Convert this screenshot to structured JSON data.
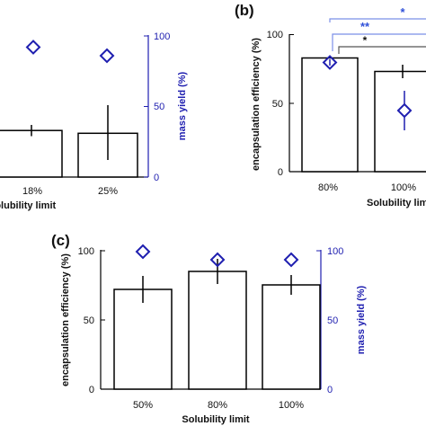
{
  "colors": {
    "bar_fill": "#ffffff",
    "bar_stroke": "#000000",
    "mass_yield": "#1f1fb0",
    "sig_light": "#7b8fe8"
  },
  "chart_data": [
    {
      "panel": "",
      "type": "bar",
      "categories": [
        "18%",
        "25%"
      ],
      "series": [
        {
          "name": "encapsulation efficiency",
          "axis": "left",
          "values": [
            33,
            31
          ],
          "errors": [
            4,
            20
          ]
        },
        {
          "name": "mass yield",
          "axis": "right",
          "marker": "diamond",
          "values": [
            92,
            86
          ],
          "errors": [
            0,
            0
          ]
        }
      ],
      "xlabel": "Solubility limit",
      "ylabel_left": "",
      "ylabel_right": "mass yield (%)",
      "ylim_left": [
        0,
        100
      ],
      "ylim_right": [
        0,
        100
      ],
      "yticks_right": [
        0,
        50,
        100
      ],
      "annotations": []
    },
    {
      "panel": "(b)",
      "type": "bar",
      "categories": [
        "80%",
        "100%"
      ],
      "series": [
        {
          "name": "encapsulation efficiency",
          "axis": "left",
          "values": [
            83,
            73
          ],
          "errors": [
            0,
            5
          ]
        },
        {
          "name": "mass yield",
          "axis": "right",
          "marker": "diamond",
          "values": [
            79,
            45
          ],
          "errors": [
            2,
            14
          ]
        }
      ],
      "xlabel": "Solubility limit",
      "ylabel_left": "encapsulation efficiency (%)",
      "ylim_left": [
        0,
        100
      ],
      "yticks_left": [
        0,
        50,
        100
      ],
      "annotations": [
        "*",
        "**",
        "*"
      ]
    },
    {
      "panel": "(c)",
      "type": "bar",
      "categories": [
        "50%",
        "80%",
        "100%"
      ],
      "series": [
        {
          "name": "encapsulation efficiency",
          "axis": "left",
          "values": [
            72,
            84,
            75
          ],
          "errors": [
            10,
            9,
            7
          ]
        },
        {
          "name": "mass yield",
          "axis": "right",
          "marker": "diamond",
          "values": [
            99,
            93,
            93
          ],
          "errors": [
            0,
            0,
            0
          ]
        }
      ],
      "xlabel": "Solubility limit",
      "ylabel_left": "encapsulation efficiency (%)",
      "ylabel_right": "mass yield (%)",
      "ylim_left": [
        0,
        100
      ],
      "ylim_right": [
        0,
        100
      ],
      "yticks_left": [
        0,
        50,
        100
      ],
      "yticks_right": [
        0,
        50,
        100
      ],
      "annotations": []
    }
  ]
}
